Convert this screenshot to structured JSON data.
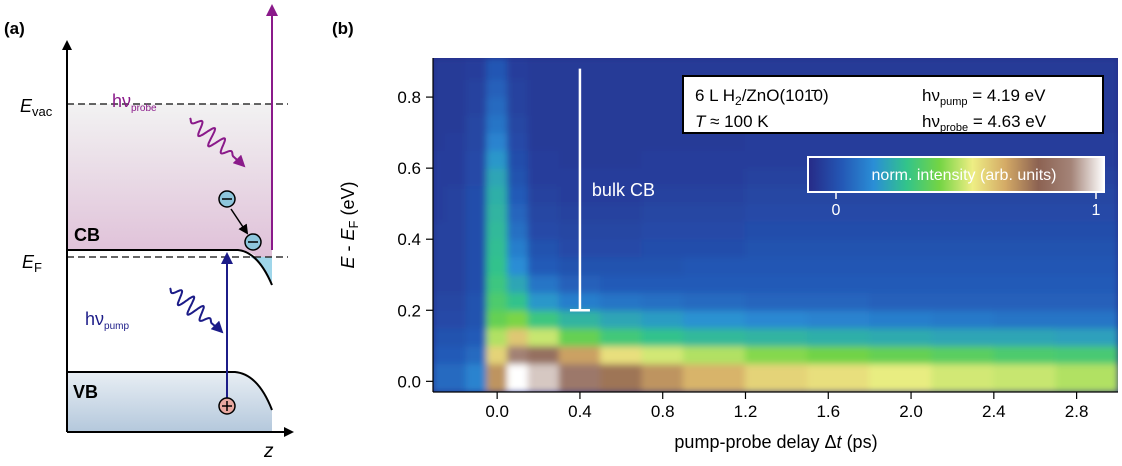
{
  "panel_a": {
    "label": "(a)",
    "e_vac": [
      "E",
      "vac"
    ],
    "hv_probe": [
      "hν",
      "probe"
    ],
    "cb": "CB",
    "e_f": [
      "E",
      "F"
    ],
    "hv_pump": [
      "hν",
      "pump"
    ],
    "vb": "VB",
    "z": "z"
  },
  "chart_data": {
    "type": "heatmap",
    "label": "(b)",
    "xlabel": [
      "pump-probe delay Δ",
      "t",
      " (ps)"
    ],
    "ylabel": [
      "E",
      " - ",
      "E",
      "F",
      " (eV)"
    ],
    "xlim": [
      -0.31,
      3.0
    ],
    "ylim": [
      -0.03,
      0.91
    ],
    "xticks": [
      {
        "value": 0,
        "label": "0.0"
      },
      0.4,
      0.8,
      1.2,
      1.6,
      {
        "value": 2,
        "label": "2.0"
      },
      2.4,
      2.8
    ],
    "yticks": [
      {
        "value": 0,
        "label": "0.0"
      },
      0.2,
      0.4,
      0.6,
      0.8
    ],
    "x_bins": [
      -0.31,
      -0.25,
      -0.15,
      -0.05,
      0.05,
      0.15,
      0.3,
      0.5,
      0.7,
      0.9,
      1.2,
      1.5,
      1.8,
      2.1,
      2.4,
      2.7,
      3.0
    ],
    "y_bins": [
      -0.03,
      0.05,
      0.1,
      0.15,
      0.2,
      0.25,
      0.3,
      0.35,
      0.4,
      0.45,
      0.5,
      0.55,
      0.6,
      0.65,
      0.7,
      0.75,
      0.8,
      0.85,
      0.91
    ],
    "z": [
      [
        0.15,
        0.15,
        0.2,
        0.7,
        1.0,
        0.95,
        0.85,
        0.75,
        0.7,
        0.65,
        0.6,
        0.58,
        0.55,
        0.53,
        0.52,
        0.5
      ],
      [
        0.12,
        0.12,
        0.15,
        0.6,
        0.88,
        0.82,
        0.68,
        0.58,
        0.53,
        0.5,
        0.46,
        0.44,
        0.42,
        0.4,
        0.38,
        0.37
      ],
      [
        0.1,
        0.1,
        0.12,
        0.5,
        0.62,
        0.52,
        0.42,
        0.36,
        0.33,
        0.31,
        0.3,
        0.29,
        0.28,
        0.27,
        0.27,
        0.26
      ],
      [
        0.08,
        0.08,
        0.1,
        0.42,
        0.45,
        0.35,
        0.3,
        0.27,
        0.25,
        0.23,
        0.21,
        0.2,
        0.19,
        0.18,
        0.17,
        0.17
      ],
      [
        0.07,
        0.07,
        0.1,
        0.38,
        0.33,
        0.24,
        0.19,
        0.17,
        0.16,
        0.15,
        0.14,
        0.14,
        0.13,
        0.13,
        0.13,
        0.13
      ],
      [
        0.06,
        0.06,
        0.09,
        0.35,
        0.27,
        0.17,
        0.13,
        0.12,
        0.12,
        0.12,
        0.12,
        0.12,
        0.12,
        0.12,
        0.12,
        0.12
      ],
      [
        0.06,
        0.06,
        0.09,
        0.33,
        0.22,
        0.12,
        0.1,
        0.1,
        0.1,
        0.11,
        0.11,
        0.11,
        0.11,
        0.11,
        0.11,
        0.11
      ],
      [
        0.06,
        0.06,
        0.09,
        0.32,
        0.19,
        0.1,
        0.08,
        0.08,
        0.09,
        0.09,
        0.1,
        0.1,
        0.1,
        0.1,
        0.1,
        0.1
      ],
      [
        0.06,
        0.06,
        0.09,
        0.31,
        0.16,
        0.08,
        0.07,
        0.07,
        0.08,
        0.08,
        0.09,
        0.09,
        0.09,
        0.09,
        0.09,
        0.09
      ],
      [
        0.05,
        0.06,
        0.09,
        0.3,
        0.14,
        0.07,
        0.06,
        0.06,
        0.07,
        0.07,
        0.08,
        0.08,
        0.08,
        0.08,
        0.08,
        0.08
      ],
      [
        0.05,
        0.06,
        0.09,
        0.29,
        0.12,
        0.06,
        0.05,
        0.05,
        0.06,
        0.06,
        0.07,
        0.07,
        0.07,
        0.07,
        0.07,
        0.07
      ],
      [
        0.05,
        0.05,
        0.08,
        0.27,
        0.1,
        0.05,
        0.05,
        0.05,
        0.05,
        0.05,
        0.06,
        0.06,
        0.06,
        0.06,
        0.06,
        0.06
      ],
      [
        0.05,
        0.05,
        0.08,
        0.24,
        0.09,
        0.05,
        0.04,
        0.04,
        0.05,
        0.05,
        0.05,
        0.05,
        0.05,
        0.05,
        0.05,
        0.05
      ],
      [
        0.04,
        0.05,
        0.07,
        0.2,
        0.08,
        0.04,
        0.04,
        0.04,
        0.04,
        0.04,
        0.05,
        0.05,
        0.05,
        0.05,
        0.05,
        0.05
      ],
      [
        0.04,
        0.04,
        0.07,
        0.17,
        0.07,
        0.04,
        0.04,
        0.04,
        0.04,
        0.04,
        0.04,
        0.04,
        0.04,
        0.04,
        0.04,
        0.04
      ],
      [
        0.04,
        0.04,
        0.06,
        0.15,
        0.06,
        0.04,
        0.04,
        0.04,
        0.04,
        0.04,
        0.04,
        0.04,
        0.04,
        0.04,
        0.04,
        0.04
      ],
      [
        0.04,
        0.04,
        0.06,
        0.13,
        0.06,
        0.04,
        0.04,
        0.04,
        0.04,
        0.04,
        0.04,
        0.04,
        0.04,
        0.04,
        0.04,
        0.04
      ],
      [
        0.04,
        0.04,
        0.05,
        0.11,
        0.05,
        0.04,
        0.04,
        0.04,
        0.04,
        0.04,
        0.04,
        0.04,
        0.04,
        0.04,
        0.04,
        0.04
      ]
    ],
    "colormap": [
      "#262a86",
      "#2456b4",
      "#2a8ed6",
      "#32c48a",
      "#74d444",
      "#eeee84",
      "#d4aa66",
      "#8c6252",
      "#a48478",
      "#ffffff"
    ],
    "colorbar": {
      "label": "norm. intensity (arb. units)",
      "ticks": [
        0,
        1
      ]
    },
    "annotations": {
      "sample": [
        "6 L H",
        "2",
        "/ZnO(101̄0)"
      ],
      "temperature": [
        "T",
        " ≈ 100 K"
      ],
      "pump": [
        "hν",
        "pump",
        " = 4.19 eV"
      ],
      "probe": [
        "hν",
        "probe",
        " = 4.63 eV"
      ]
    },
    "bulk_cb": {
      "label": "bulk CB",
      "x": 0.4,
      "y": [
        0.2,
        0.88
      ]
    }
  }
}
